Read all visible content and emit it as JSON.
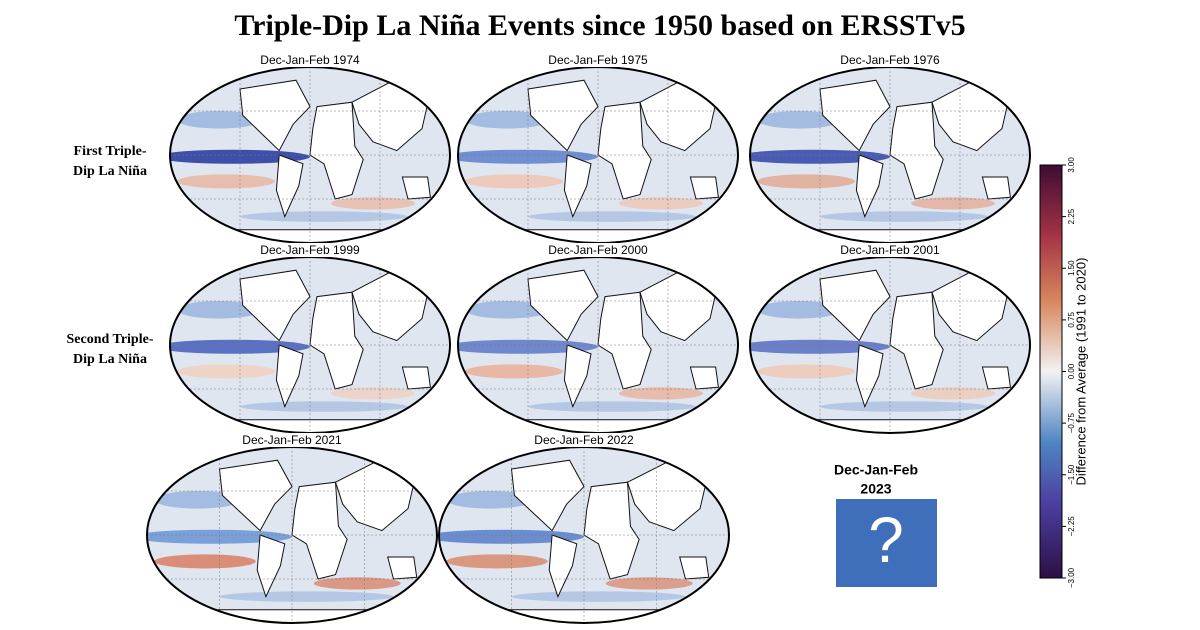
{
  "title": "Triple-Dip La Niña Events since 1950 based on ERSSTv5",
  "rows": [
    {
      "label": [
        "First Triple-",
        "Dip La Niña"
      ]
    },
    {
      "label": [
        "Second Triple-",
        "Dip La Niña"
      ]
    }
  ],
  "panels": [
    "Dec-Jan-Feb 1974",
    "Dec-Jan-Feb 1975",
    "Dec-Jan-Feb 1976",
    "Dec-Jan-Feb 1999",
    "Dec-Jan-Feb 2000",
    "Dec-Jan-Feb 2001",
    "Dec-Jan-Feb 2021",
    "Dec-Jan-Feb 2022"
  ],
  "placeholder": {
    "title": [
      "Dec-Jan-Feb",
      "2023"
    ],
    "symbol": "?"
  },
  "colorbar": {
    "label": "Difference from Average (1991 to 2020)",
    "lim": [
      -3,
      3
    ],
    "ticks": [
      {
        "value": -3,
        "label": "−3.00"
      },
      {
        "value": -2.25,
        "label": "−2.25"
      },
      {
        "value": -1.5,
        "label": "−1.50"
      },
      {
        "value": -0.75,
        "label": "−0.75"
      },
      {
        "value": 0,
        "label": "0.00"
      },
      {
        "value": 0.75,
        "label": "0.75"
      },
      {
        "value": 1.5,
        "label": "1.50"
      },
      {
        "value": 2.25,
        "label": "2.25"
      },
      {
        "value": 3,
        "label": "3.00"
      }
    ]
  }
}
